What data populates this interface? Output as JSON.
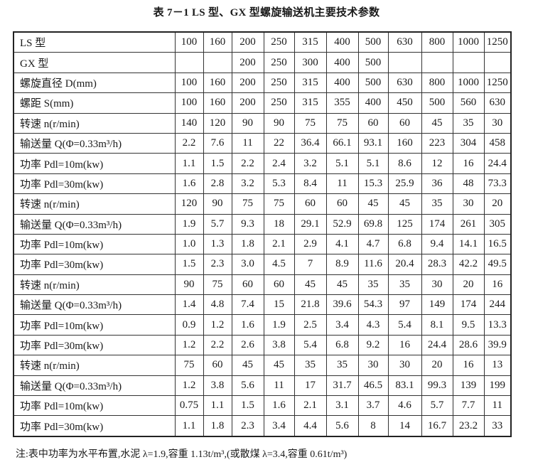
{
  "title": "表 7－1 LS 型、GX 型螺旋输送机主要技术参数",
  "rows": [
    {
      "label": "LS 型",
      "values": [
        "100",
        "160",
        "200",
        "250",
        "315",
        "400",
        "500",
        "630",
        "800",
        "1000",
        "1250"
      ]
    },
    {
      "label": "GX 型",
      "values": [
        "",
        "",
        "200",
        "250",
        "300",
        "400",
        "500",
        "",
        "",
        "",
        ""
      ]
    },
    {
      "label": "螺旋直径 D(mm)",
      "values": [
        "100",
        "160",
        "200",
        "250",
        "315",
        "400",
        "500",
        "630",
        "800",
        "1000",
        "1250"
      ]
    },
    {
      "label": "螺距 S(mm)",
      "values": [
        "100",
        "160",
        "200",
        "250",
        "315",
        "355",
        "400",
        "450",
        "500",
        "560",
        "630"
      ]
    },
    {
      "label": "转速 n(r/min)",
      "values": [
        "140",
        "120",
        "90",
        "90",
        "75",
        "75",
        "60",
        "60",
        "45",
        "35",
        "30"
      ]
    },
    {
      "label": "输送量 Q(Φ=0.33m³/h)",
      "values": [
        "2.2",
        "7.6",
        "11",
        "22",
        "36.4",
        "66.1",
        "93.1",
        "160",
        "223",
        "304",
        "458"
      ]
    },
    {
      "label": "功率 Pdl=10m(kw)",
      "values": [
        "1.1",
        "1.5",
        "2.2",
        "2.4",
        "3.2",
        "5.1",
        "5.1",
        "8.6",
        "12",
        "16",
        "24.4"
      ]
    },
    {
      "label": "功率 Pdl=30m(kw)",
      "values": [
        "1.6",
        "2.8",
        "3.2",
        "5.3",
        "8.4",
        "11",
        "15.3",
        "25.9",
        "36",
        "48",
        "73.3"
      ]
    },
    {
      "label": "转速 n(r/min)",
      "values": [
        "120",
        "90",
        "75",
        "75",
        "60",
        "60",
        "45",
        "45",
        "35",
        "30",
        "20"
      ]
    },
    {
      "label": "输送量 Q(Φ=0.33m³/h)",
      "values": [
        "1.9",
        "5.7",
        "9.3",
        "18",
        "29.1",
        "52.9",
        "69.8",
        "125",
        "174",
        "261",
        "305"
      ]
    },
    {
      "label": "功率 Pdl=10m(kw)",
      "values": [
        "1.0",
        "1.3",
        "1.8",
        "2.1",
        "2.9",
        "4.1",
        "4.7",
        "6.8",
        "9.4",
        "14.1",
        "16.5"
      ]
    },
    {
      "label": "功率 Pdl=30m(kw)",
      "values": [
        "1.5",
        "2.3",
        "3.0",
        "4.5",
        "7",
        "8.9",
        "11.6",
        "20.4",
        "28.3",
        "42.2",
        "49.5"
      ]
    },
    {
      "label": "转速 n(r/min)",
      "values": [
        "90",
        "75",
        "60",
        "60",
        "45",
        "45",
        "35",
        "35",
        "30",
        "20",
        "16"
      ]
    },
    {
      "label": "输送量 Q(Φ=0.33m³/h)",
      "values": [
        "1.4",
        "4.8",
        "7.4",
        "15",
        "21.8",
        "39.6",
        "54.3",
        "97",
        "149",
        "174",
        "244"
      ]
    },
    {
      "label": "功率 Pdl=10m(kw)",
      "values": [
        "0.9",
        "1.2",
        "1.6",
        "1.9",
        "2.5",
        "3.4",
        "4.3",
        "5.4",
        "8.1",
        "9.5",
        "13.3"
      ]
    },
    {
      "label": "功率 Pdl=30m(kw)",
      "values": [
        "1.2",
        "2.2",
        "2.6",
        "3.8",
        "5.4",
        "6.8",
        "9.2",
        "16",
        "24.4",
        "28.6",
        "39.9"
      ]
    },
    {
      "label": "转速 n(r/min)",
      "values": [
        "75",
        "60",
        "45",
        "45",
        "35",
        "35",
        "30",
        "30",
        "20",
        "16",
        "13"
      ]
    },
    {
      "label": "输送量 Q(Φ=0.33m³/h)",
      "values": [
        "1.2",
        "3.8",
        "5.6",
        "11",
        "17",
        "31.7",
        "46.5",
        "83.1",
        "99.3",
        "139",
        "199"
      ]
    },
    {
      "label": "功率 Pdl=10m(kw)",
      "values": [
        "0.75",
        "1.1",
        "1.5",
        "1.6",
        "2.1",
        "3.1",
        "3.7",
        "4.6",
        "5.7",
        "7.7",
        "11"
      ]
    },
    {
      "label": "功率 Pdl=30m(kw)",
      "values": [
        "1.1",
        "1.8",
        "2.3",
        "3.4",
        "4.4",
        "5.6",
        "8",
        "14",
        "16.7",
        "23.2",
        "33"
      ]
    }
  ],
  "note": "注:表中功率为水平布置,水泥 λ=1.9,容重 1.13t/m³,(或散煤 λ=3.4,容重 0.61t/m³)"
}
